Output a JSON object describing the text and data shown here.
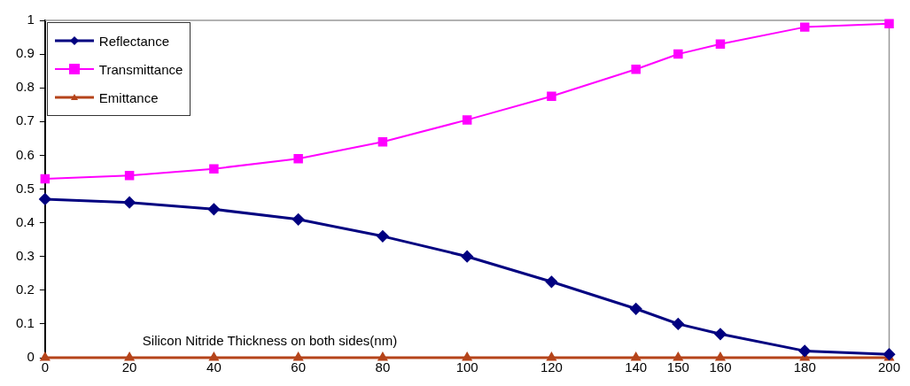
{
  "chart_data": {
    "type": "line",
    "xlabel": "Silicon Nitride Thickness on both sides(nm)",
    "x": [
      0,
      20,
      40,
      60,
      80,
      100,
      120,
      140,
      150,
      160,
      180,
      200
    ],
    "series": [
      {
        "name": "Reflectance",
        "color": "#000080",
        "marker": "diamond",
        "values": [
          0.47,
          0.46,
          0.44,
          0.41,
          0.36,
          0.3,
          0.225,
          0.145,
          0.1,
          0.07,
          0.02,
          0.01
        ]
      },
      {
        "name": "Transmittance",
        "color": "#ff00ff",
        "marker": "square",
        "values": [
          0.53,
          0.54,
          0.56,
          0.59,
          0.64,
          0.705,
          0.775,
          0.855,
          0.9,
          0.93,
          0.98,
          0.99
        ]
      },
      {
        "name": "Emittance",
        "color": "#b5441a",
        "marker": "triangle",
        "values": [
          0,
          0,
          0,
          0,
          0,
          0,
          0,
          0,
          0,
          0,
          0,
          0
        ]
      }
    ],
    "xlim": [
      0,
      200
    ],
    "xticks": [
      0,
      20,
      40,
      60,
      80,
      100,
      120,
      140,
      150,
      160,
      180,
      200
    ],
    "ylim": [
      0,
      1
    ],
    "yticks": [
      0,
      0.1,
      0.2,
      0.3,
      0.4,
      0.5,
      0.6,
      0.7,
      0.8,
      0.9,
      1
    ],
    "grid": false,
    "legend": "top left"
  }
}
